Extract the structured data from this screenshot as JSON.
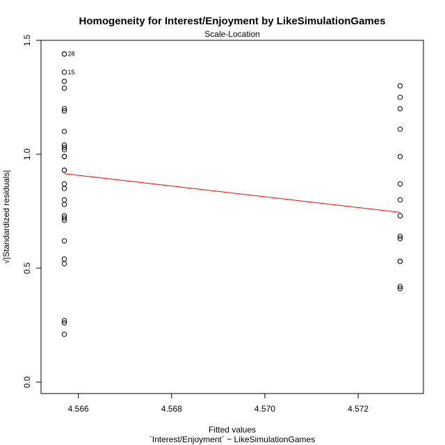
{
  "chart_data": {
    "type": "scatter",
    "title": "Homogeneity for Interest/Enjoyment by LikeSimulationGames",
    "subtitle": "Scale-Location",
    "xlabel": "Fitted values",
    "xlabel_sub": "`Interest/Enjoyment` ~ LikeSimulationGames",
    "ylabel": "√|Standardized residuals|",
    "xlim": [
      4.5652,
      4.5734
    ],
    "ylim": [
      -0.05,
      1.5
    ],
    "x_ticks": [
      {
        "value": 4.566,
        "label": "4.566"
      },
      {
        "value": 4.568,
        "label": "4.568"
      },
      {
        "value": 4.57,
        "label": "4.570"
      },
      {
        "value": 4.572,
        "label": "4.572"
      }
    ],
    "y_ticks": [
      {
        "value": 0.0,
        "label": "0.0"
      },
      {
        "value": 0.5,
        "label": "0.5"
      },
      {
        "value": 1.0,
        "label": "1.0"
      },
      {
        "value": 1.5,
        "label": "1.5"
      }
    ],
    "grid": false,
    "point_style": "open-circle",
    "colors": {
      "points": "#000000",
      "smooth": "#ff0000",
      "frame": "#000000"
    },
    "series": [
      {
        "x": 4.5657,
        "values": [
          1.44,
          1.44,
          1.36,
          1.32,
          1.29,
          1.2,
          1.19,
          1.1,
          1.04,
          1.03,
          1.02,
          0.99,
          0.99,
          0.93,
          0.93,
          0.87,
          0.85,
          0.8,
          0.78,
          0.73,
          0.72,
          0.71,
          0.62,
          0.54,
          0.52,
          0.27,
          0.26,
          0.21
        ]
      },
      {
        "x": 4.5729,
        "values": [
          1.3,
          1.25,
          1.2,
          1.11,
          0.99,
          0.87,
          0.8,
          0.73,
          0.64,
          0.63,
          0.53,
          0.53,
          0.42,
          0.41
        ]
      }
    ],
    "point_labels": [
      {
        "x": 4.5657,
        "y": 1.44,
        "text": "28"
      },
      {
        "x": 4.5657,
        "y": 1.36,
        "text": "15"
      }
    ],
    "smooth_line": {
      "x": [
        4.5657,
        4.5729
      ],
      "y": [
        0.915,
        0.745
      ]
    }
  }
}
